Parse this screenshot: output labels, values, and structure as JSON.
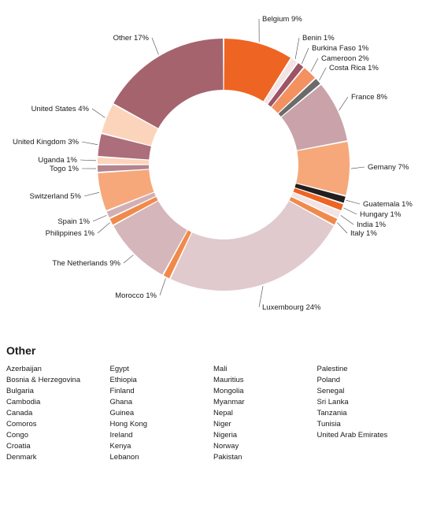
{
  "chart_data": {
    "type": "pie",
    "variant": "donut",
    "start_angle_deg": 0,
    "slices": [
      {
        "label": "Belgium",
        "pct_label": "9%",
        "value": 9,
        "color": "#ee6422"
      },
      {
        "label": "Benin",
        "pct_label": "1%",
        "value": 1,
        "color": "#f2e3e4"
      },
      {
        "label": "Burkina Faso",
        "pct_label": "1%",
        "value": 1,
        "color": "#9c5466"
      },
      {
        "label": "Cameroon",
        "pct_label": "2%",
        "value": 2,
        "color": "#f39161"
      },
      {
        "label": "Costa Rica",
        "pct_label": "1%",
        "value": 1,
        "color": "#6b6b6b"
      },
      {
        "label": "France",
        "pct_label": "8%",
        "value": 8,
        "color": "#c9a3a9"
      },
      {
        "label": "Gemany",
        "pct_label": "7%",
        "value": 7,
        "color": "#f6a87a"
      },
      {
        "label": "Guatemala",
        "pct_label": "1%",
        "value": 1,
        "color": "#231f20"
      },
      {
        "label": "Hungary",
        "pct_label": "1%",
        "value": 1,
        "color": "#ee6422"
      },
      {
        "label": "India",
        "pct_label": "1%",
        "value": 1,
        "color": "#f2e3e4"
      },
      {
        "label": "Italy",
        "pct_label": "1%",
        "value": 1,
        "color": "#f08a4b"
      },
      {
        "label": "Luxembourg",
        "pct_label": "24%",
        "value": 24,
        "color": "#e0cacd"
      },
      {
        "label": "Morocco",
        "pct_label": "1%",
        "value": 1,
        "color": "#f08a4b"
      },
      {
        "label": "The Netherlands",
        "pct_label": "9%",
        "value": 9,
        "color": "#d5b6bb"
      },
      {
        "label": "Philippines",
        "pct_label": "1%",
        "value": 1,
        "color": "#f08a4b"
      },
      {
        "label": "Spain",
        "pct_label": "1%",
        "value": 1,
        "color": "#d0b0b6"
      },
      {
        "label": "Switzerland",
        "pct_label": "5%",
        "value": 5,
        "color": "#f6a87a"
      },
      {
        "label": "Togo",
        "pct_label": "1%",
        "value": 1,
        "color": "#b5848e"
      },
      {
        "label": "Uganda",
        "pct_label": "1%",
        "value": 1,
        "color": "#fcd4bc"
      },
      {
        "label": "United Kingdom",
        "pct_label": "3%",
        "value": 3,
        "color": "#ab6e7a"
      },
      {
        "label": "United States",
        "pct_label": "4%",
        "value": 4,
        "color": "#fcd4bc"
      },
      {
        "label": "Other",
        "pct_label": "17%",
        "value": 17,
        "color": "#a5636e"
      }
    ]
  },
  "other": {
    "title": "Other",
    "columns": [
      [
        "Azerbaijan",
        "Bosnia & Herzegovina",
        "Bulgaria",
        "Cambodia",
        "Canada",
        "Comoros",
        "Congo",
        "Croatia",
        "Denmark"
      ],
      [
        "Egypt",
        "Ethiopia",
        "Finland",
        "Ghana",
        "Guinea",
        "Hong Kong",
        "Ireland",
        "Kenya",
        "Lebanon"
      ],
      [
        "Mali",
        "Mauritius",
        "Mongolia",
        "Myanmar",
        "Nepal",
        "Niger",
        "Nigeria",
        "Norway",
        "Pakistan"
      ],
      [
        "Palestine",
        "Poland",
        "Senegal",
        "Sri Lanka",
        "Tanzania",
        "Tunisia",
        "United Arab Emirates"
      ]
    ]
  }
}
